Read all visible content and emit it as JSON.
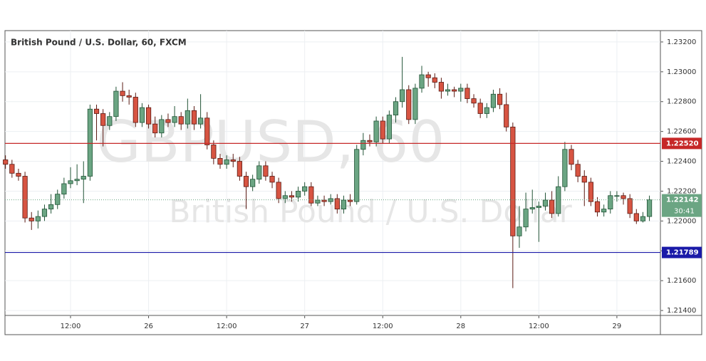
{
  "chart_data": {
    "type": "candlestick",
    "title": "British Pound / U.S. Dollar, 60, FXCM",
    "watermark": [
      "GBPUSD, 60",
      "British Pound / U.S. Dollar"
    ],
    "categories": [
      null,
      null,
      null,
      null,
      null,
      null,
      null,
      null,
      null,
      null,
      "12:00",
      null,
      null,
      null,
      null,
      null,
      null,
      null,
      null,
      null,
      null,
      null,
      "26",
      null,
      null,
      null,
      null,
      null,
      null,
      null,
      null,
      null,
      null,
      null,
      "12:00",
      null,
      null,
      null,
      null,
      null,
      null,
      null,
      null,
      null,
      null,
      null,
      "27",
      null,
      null,
      null,
      null,
      null,
      null,
      null,
      null,
      null,
      null,
      null,
      "12:00",
      null,
      null,
      null,
      null,
      null,
      null,
      null,
      null,
      null,
      null,
      null,
      "28",
      null,
      null,
      null,
      null,
      null,
      null,
      null,
      null,
      null,
      null,
      null,
      "12:00",
      null,
      null,
      null,
      null,
      null,
      null,
      null,
      null,
      null,
      null,
      null,
      "29",
      null,
      null,
      null,
      null,
      null
    ],
    "open": [
      1.2241,
      1.2238,
      1.2232,
      1.223,
      1.2202,
      1.22,
      1.2203,
      1.2208,
      1.2211,
      1.2218,
      1.2225,
      1.2227,
      1.2228,
      1.223,
      1.2275,
      1.2272,
      1.2264,
      1.227,
      1.2287,
      1.2284,
      1.2283,
      1.2266,
      1.2276,
      1.2265,
      1.2259,
      1.2268,
      1.2266,
      1.227,
      1.2265,
      1.2274,
      1.2265,
      1.2269,
      1.2251,
      1.2242,
      1.2238,
      1.2241,
      1.224,
      1.223,
      1.2223,
      1.2228,
      1.2237,
      1.223,
      1.2226,
      1.2215,
      1.2217,
      1.2216,
      1.222,
      1.2223,
      1.2212,
      1.2214,
      1.2213,
      1.2215,
      1.2208,
      1.2214,
      1.2213,
      1.2248,
      1.2254,
      1.2253,
      1.2267,
      1.2255,
      1.2271,
      1.228,
      1.2288,
      1.2268,
      1.2289,
      1.2298,
      1.2296,
      1.2293,
      1.2287,
      1.2288,
      1.2287,
      1.2289,
      1.2282,
      1.2279,
      1.2272,
      1.2276,
      1.2285,
      1.2278,
      1.2263,
      1.219,
      1.2196,
      1.2208,
      1.2209,
      1.221,
      1.2214,
      1.2205,
      1.2223,
      1.2248,
      1.2238,
      1.223,
      1.2226,
      1.2213,
      1.2206,
      1.2208,
      1.2217,
      1.2217,
      1.2215,
      1.2205,
      1.22,
      1.2203
    ],
    "high": [
      1.2244,
      1.2241,
      1.2235,
      1.2233,
      1.2206,
      1.2207,
      1.2211,
      1.2218,
      1.2221,
      1.2229,
      1.2236,
      1.2238,
      1.224,
      1.2278,
      1.2278,
      1.2275,
      1.2273,
      1.229,
      1.2293,
      1.2288,
      1.2286,
      1.2279,
      1.2278,
      1.227,
      1.2271,
      1.2272,
      1.2277,
      1.2273,
      1.2282,
      1.2277,
      1.2285,
      1.2273,
      1.2254,
      1.2245,
      1.2244,
      1.2245,
      1.2243,
      1.2233,
      1.2231,
      1.224,
      1.224,
      1.2233,
      1.2229,
      1.222,
      1.222,
      1.2223,
      1.2226,
      1.2226,
      1.2217,
      1.2217,
      1.2218,
      1.2218,
      1.2217,
      1.2218,
      1.2251,
      1.2259,
      1.2258,
      1.227,
      1.227,
      1.2274,
      1.2283,
      1.231,
      1.2291,
      1.2292,
      1.2304,
      1.23,
      1.2299,
      1.2296,
      1.2292,
      1.229,
      1.2292,
      1.2292,
      1.2285,
      1.2282,
      1.2279,
      1.2288,
      1.2289,
      1.2286,
      1.2266,
      1.221,
      1.2219,
      1.2221,
      1.2213,
      1.2219,
      1.222,
      1.223,
      1.2253,
      1.2251,
      1.2241,
      1.2234,
      1.2229,
      1.2216,
      1.2211,
      1.222,
      1.222,
      1.2219,
      1.2218,
      1.2208,
      1.2206,
      1.2217
    ],
    "low": [
      1.2235,
      1.2229,
      1.2227,
      1.2199,
      1.2194,
      1.2195,
      1.22,
      1.2205,
      1.2208,
      1.2215,
      1.2222,
      1.2224,
      1.2212,
      1.2227,
      1.2254,
      1.225,
      1.2261,
      1.2267,
      1.228,
      1.2278,
      1.2263,
      1.2263,
      1.2262,
      1.2256,
      1.2256,
      1.2263,
      1.2263,
      1.2261,
      1.2262,
      1.2261,
      1.2262,
      1.2248,
      1.2238,
      1.2235,
      1.2235,
      1.2236,
      1.2227,
      1.2208,
      1.222,
      1.2225,
      1.2227,
      1.2222,
      1.2212,
      1.2212,
      1.2213,
      1.2213,
      1.2217,
      1.221,
      1.221,
      1.221,
      1.2211,
      1.2205,
      1.2205,
      1.221,
      1.2211,
      1.2244,
      1.225,
      1.225,
      1.2252,
      1.2252,
      1.2266,
      1.2276,
      1.2265,
      1.2265,
      1.2286,
      1.229,
      1.2289,
      1.2282,
      1.2284,
      1.2283,
      1.228,
      1.2279,
      1.2276,
      1.2269,
      1.2269,
      1.2273,
      1.2275,
      1.226,
      1.2155,
      1.2182,
      1.2193,
      1.2205,
      1.2186,
      1.2207,
      1.2202,
      1.2203,
      1.222,
      1.2234,
      1.2226,
      1.221,
      1.221,
      1.2203,
      1.2203,
      1.2205,
      1.2213,
      1.2211,
      1.2202,
      1.2198,
      1.2199,
      1.22
    ],
    "close": [
      1.2238,
      1.2232,
      1.223,
      1.2202,
      1.22,
      1.2203,
      1.2208,
      1.2211,
      1.2218,
      1.2225,
      1.2227,
      1.2228,
      1.223,
      1.2275,
      1.2272,
      1.2264,
      1.227,
      1.2287,
      1.2284,
      1.2283,
      1.2266,
      1.2276,
      1.2265,
      1.2259,
      1.2268,
      1.2266,
      1.227,
      1.2265,
      1.2274,
      1.2265,
      1.2269,
      1.2251,
      1.2242,
      1.2238,
      1.2241,
      1.224,
      1.223,
      1.2223,
      1.2228,
      1.2237,
      1.223,
      1.2226,
      1.2215,
      1.2217,
      1.2216,
      1.222,
      1.2223,
      1.2212,
      1.2214,
      1.2213,
      1.2215,
      1.2208,
      1.2214,
      1.2213,
      1.2248,
      1.2254,
      1.2253,
      1.2267,
      1.2255,
      1.2271,
      1.228,
      1.2288,
      1.2268,
      1.2289,
      1.2298,
      1.2296,
      1.2293,
      1.2287,
      1.2288,
      1.2287,
      1.2289,
      1.2282,
      1.2279,
      1.2272,
      1.2276,
      1.2285,
      1.2278,
      1.2263,
      1.219,
      1.2196,
      1.2208,
      1.2209,
      1.221,
      1.2214,
      1.2205,
      1.2223,
      1.2248,
      1.2238,
      1.223,
      1.2226,
      1.2213,
      1.2206,
      1.2208,
      1.2217,
      1.2217,
      1.2215,
      1.2205,
      1.22,
      1.2203,
      1.22142
    ],
    "up_color": "#6ba583",
    "down_color": "#d75442",
    "ylim": [
      1.21367,
      1.23276
    ],
    "yticks": [
      {
        "value": 1.214,
        "label": "1.21400"
      },
      {
        "value": 1.216,
        "label": "1.21600"
      },
      {
        "value": 1.218,
        "label": "1.21800"
      },
      {
        "value": 1.22,
        "label": "1.22000"
      },
      {
        "value": 1.222,
        "label": "1.22200"
      },
      {
        "value": 1.224,
        "label": "1.22400"
      },
      {
        "value": 1.226,
        "label": "1.22600"
      },
      {
        "value": 1.228,
        "label": "1.22800"
      },
      {
        "value": 1.23,
        "label": "1.23000"
      },
      {
        "value": 1.232,
        "label": "1.23200"
      }
    ],
    "grid": true,
    "levels": [
      {
        "value": 1.2252,
        "label": "1.22520",
        "color": "#c62828"
      },
      {
        "value": 1.21789,
        "label": "1.21789",
        "color": "#1a1aa8"
      }
    ],
    "countdown": "30:41"
  }
}
